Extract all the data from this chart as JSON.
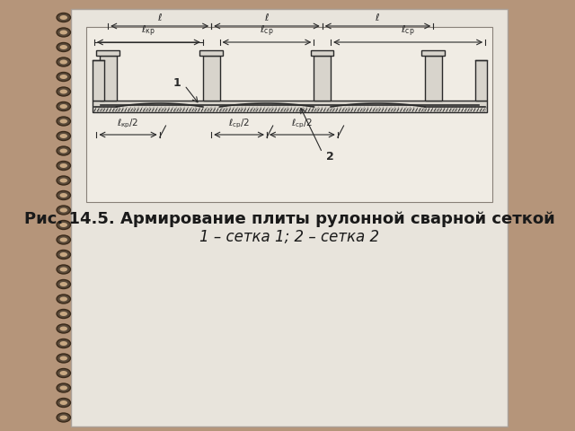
{
  "bg_outer": "#b5957a",
  "bg_page": "#e8e4dc",
  "bg_diagram": "#f0ece4",
  "line_color": "#2a2a2a",
  "title_text": "Рис. 14.5. Армирование плиты рулонной сварной сеткой",
  "subtitle_text": "1 – сетка 1; 2 – сетка 2",
  "title_fontsize": 13,
  "subtitle_fontsize": 12,
  "spiral_color": "#5a4a3a",
  "spiral_bg": "#8b6e55"
}
